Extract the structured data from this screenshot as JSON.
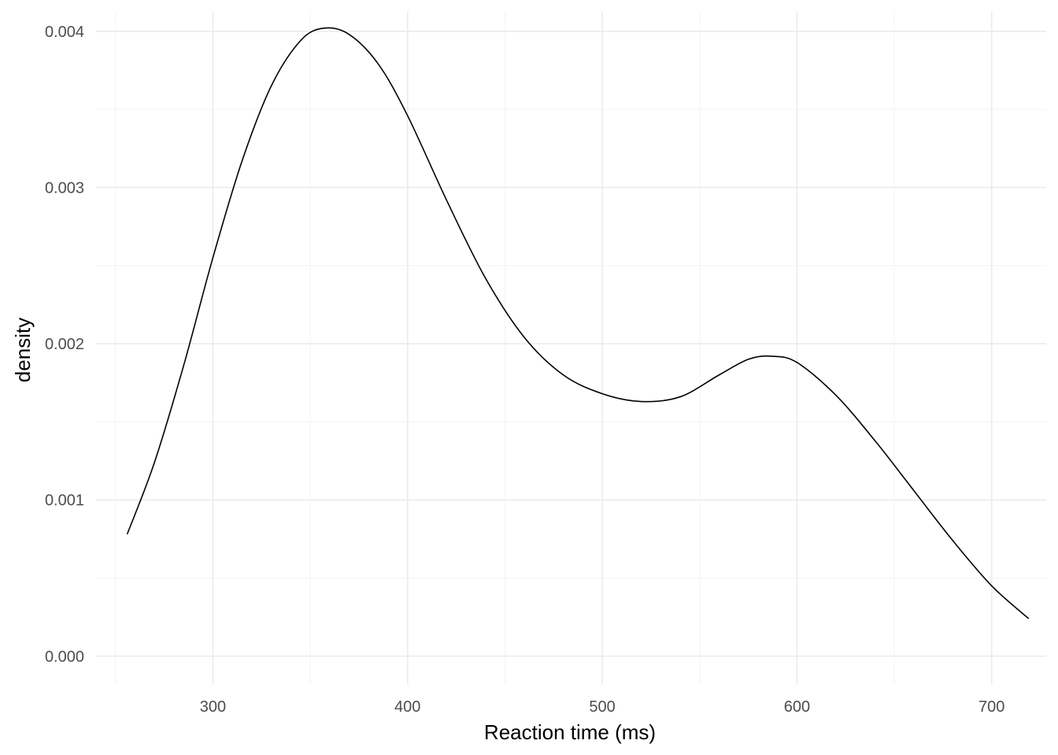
{
  "chart_data": {
    "type": "line",
    "title": "",
    "xlabel": "Reaction time (ms)",
    "ylabel": "density",
    "xlim": [
      240,
      728
    ],
    "ylim": [
      -0.00018,
      0.00413
    ],
    "x_ticks": [
      300,
      400,
      500,
      600,
      700
    ],
    "x_tick_labels": [
      "300",
      "400",
      "500",
      "600",
      "700"
    ],
    "x_minor_ticks": [
      250,
      350,
      450,
      550,
      650
    ],
    "y_ticks": [
      0.0,
      0.001,
      0.002,
      0.003,
      0.004
    ],
    "y_tick_labels": [
      "0.000",
      "0.001",
      "0.002",
      "0.003",
      "0.004"
    ],
    "y_minor_ticks": [
      0.0005,
      0.0015,
      0.0025,
      0.0035
    ],
    "grid": true,
    "line_color": "#000000",
    "grid_color": "#ebebeb",
    "series": [
      {
        "x": [
          256,
          270,
          285,
          300,
          315,
          330,
          345,
          357,
          370,
          385,
          400,
          420,
          440,
          460,
          480,
          500,
          520,
          540,
          560,
          575,
          587,
          600,
          620,
          640,
          660,
          680,
          700,
          719
        ],
        "values": [
          0.00078,
          0.00124,
          0.00186,
          0.00255,
          0.00317,
          0.00365,
          0.00394,
          0.00402,
          0.00398,
          0.00379,
          0.00346,
          0.00292,
          0.00242,
          0.00204,
          0.0018,
          0.00168,
          0.00163,
          0.00166,
          0.0018,
          0.0019,
          0.00192,
          0.00188,
          0.00167,
          0.00138,
          0.00106,
          0.00074,
          0.00045,
          0.00024
        ]
      }
    ]
  }
}
